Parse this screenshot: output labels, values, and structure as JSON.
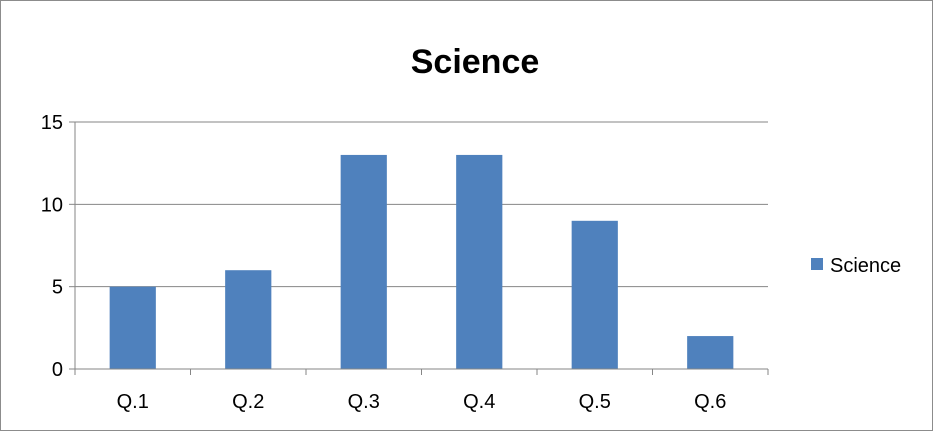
{
  "chart_data": {
    "type": "bar",
    "title": "Science",
    "categories": [
      "Q.1",
      "Q.2",
      "Q.3",
      "Q.4",
      "Q.5",
      "Q.6"
    ],
    "series": [
      {
        "name": "Science",
        "values": [
          5,
          6,
          13,
          13,
          9,
          2
        ],
        "color": "#4f81bd"
      }
    ],
    "yticks": [
      "0",
      "5",
      "10",
      "15"
    ],
    "ylim": [
      0,
      15
    ],
    "grid": true,
    "legend": {
      "position": "right"
    }
  }
}
